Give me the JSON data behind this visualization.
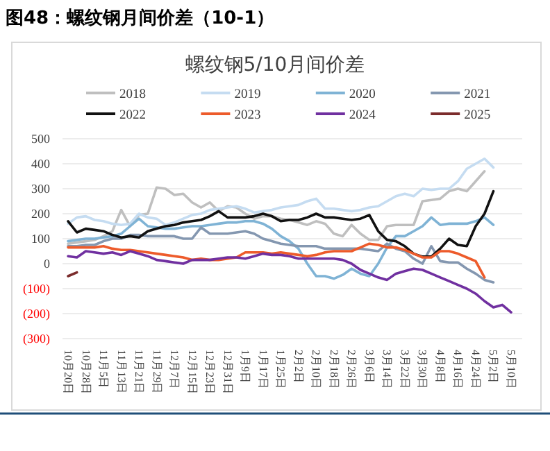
{
  "chart_data": {
    "type": "line",
    "title": "图48：螺纹钢月间价差（10-1）",
    "subtitle": "螺纹钢5/10月间价差",
    "categories": [
      "10月20日",
      null,
      "10月28日",
      null,
      "11月5日",
      null,
      "11月13日",
      null,
      "11月21日",
      null,
      "11月29日",
      null,
      "12月7日",
      null,
      "12月15日",
      null,
      "12月23日",
      null,
      "12月31日",
      null,
      "1月9日",
      null,
      "1月17日",
      null,
      "1月25日",
      null,
      "2月2日",
      null,
      "2月10日",
      null,
      "2月18日",
      null,
      "2月26日",
      null,
      "3月6日",
      null,
      "3月14日",
      null,
      "3月22日",
      null,
      "3月30日",
      null,
      "4月8日",
      null,
      "4月16日",
      null,
      "4月24日",
      null,
      "5月2日",
      null,
      "5月10日"
    ],
    "ylim": [
      -300,
      500
    ],
    "yticks": [
      {
        "value": -300,
        "label": "(300)"
      },
      {
        "value": -200,
        "label": "(200)"
      },
      {
        "value": -100,
        "label": "(100)"
      },
      0,
      100,
      200,
      300,
      400,
      500
    ],
    "grid": "y",
    "legend": "top",
    "line_style": "solid",
    "marker": "none",
    "series": [
      {
        "name": "2018",
        "color": "#bfbfbf",
        "values": [
          80,
          85,
          90,
          95,
          110,
          130,
          215,
          150,
          195,
          200,
          305,
          300,
          275,
          280,
          245,
          225,
          245,
          210,
          230,
          225,
          200,
          180,
          190,
          190,
          180,
          175,
          165,
          155,
          170,
          160,
          120,
          110,
          155,
          120,
          95,
          95,
          150,
          155,
          155,
          155,
          250,
          255,
          260,
          290,
          300,
          290,
          330,
          370,
          null,
          null,
          null
        ]
      },
      {
        "name": "2019",
        "color": "#c5dcf1",
        "values": [
          160,
          185,
          190,
          175,
          170,
          160,
          155,
          160,
          200,
          185,
          180,
          155,
          165,
          180,
          195,
          200,
          215,
          220,
          225,
          230,
          220,
          205,
          210,
          215,
          225,
          230,
          235,
          250,
          260,
          220,
          220,
          215,
          210,
          215,
          225,
          230,
          250,
          270,
          280,
          270,
          300,
          295,
          300,
          300,
          330,
          380,
          400,
          420,
          385,
          null,
          null
        ]
      },
      {
        "name": "2020",
        "color": "#7fb3d5",
        "values": [
          90,
          95,
          100,
          100,
          105,
          110,
          120,
          150,
          180,
          150,
          145,
          140,
          140,
          145,
          150,
          150,
          155,
          160,
          165,
          165,
          170,
          170,
          160,
          140,
          110,
          90,
          60,
          0,
          -50,
          -50,
          -60,
          -45,
          -20,
          -40,
          -50,
          0,
          65,
          110,
          110,
          130,
          150,
          185,
          155,
          160,
          160,
          160,
          170,
          185,
          155,
          null,
          null
        ]
      },
      {
        "name": "2021",
        "color": "#8497b0",
        "values": [
          70,
          70,
          75,
          75,
          90,
          100,
          100,
          115,
          115,
          110,
          110,
          110,
          110,
          100,
          100,
          145,
          120,
          120,
          120,
          125,
          130,
          120,
          100,
          90,
          80,
          75,
          70,
          70,
          70,
          60,
          60,
          60,
          60,
          60,
          55,
          50,
          80,
          60,
          50,
          20,
          0,
          70,
          10,
          5,
          5,
          -20,
          -40,
          -65,
          -75,
          null,
          null
        ]
      },
      {
        "name": "2022",
        "color": "#111111",
        "values": [
          170,
          125,
          140,
          135,
          130,
          115,
          105,
          110,
          105,
          130,
          140,
          150,
          155,
          165,
          170,
          175,
          190,
          210,
          185,
          185,
          185,
          190,
          200,
          190,
          170,
          175,
          175,
          185,
          200,
          185,
          185,
          180,
          175,
          180,
          195,
          130,
          95,
          90,
          70,
          40,
          28,
          28,
          60,
          100,
          75,
          70,
          150,
          200,
          290,
          null,
          null
        ]
      },
      {
        "name": "2023",
        "color": "#ed5b2b",
        "values": [
          65,
          65,
          65,
          65,
          70,
          60,
          55,
          55,
          50,
          45,
          40,
          35,
          30,
          25,
          15,
          20,
          15,
          15,
          20,
          25,
          45,
          45,
          45,
          40,
          45,
          40,
          35,
          30,
          35,
          45,
          50,
          50,
          50,
          65,
          80,
          75,
          65,
          65,
          55,
          40,
          25,
          25,
          50,
          50,
          40,
          25,
          10,
          -55,
          null,
          null,
          null
        ]
      },
      {
        "name": "2024",
        "color": "#7030a0",
        "values": [
          30,
          25,
          50,
          45,
          40,
          45,
          35,
          50,
          40,
          30,
          15,
          10,
          5,
          0,
          15,
          15,
          15,
          20,
          25,
          25,
          20,
          30,
          40,
          35,
          35,
          30,
          20,
          20,
          20,
          20,
          20,
          15,
          0,
          -25,
          -40,
          -55,
          -65,
          -40,
          -30,
          -20,
          -25,
          -40,
          -55,
          -70,
          -85,
          -100,
          -120,
          -150,
          -175,
          -165,
          -195
        ]
      },
      {
        "name": "2025",
        "color": "#7b2c2c",
        "values": [
          -50,
          -35,
          null,
          null,
          null,
          null,
          null,
          null,
          null,
          null,
          null,
          null,
          null,
          null,
          null,
          null,
          null,
          null,
          null,
          null,
          null,
          null,
          null,
          null,
          null,
          null,
          null,
          null,
          null,
          null,
          null,
          null,
          null,
          null,
          null,
          null,
          null,
          null,
          null,
          null,
          null,
          null,
          null,
          null,
          null,
          null,
          null,
          null,
          null,
          null,
          null
        ]
      }
    ]
  }
}
